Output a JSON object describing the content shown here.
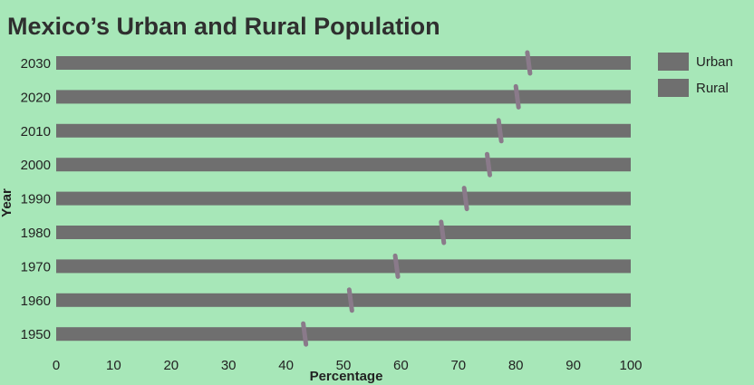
{
  "chart_data": {
    "type": "bar",
    "title": "Mexico’s Urban and Rural Population",
    "xlabel": "Percentage",
    "ylabel": "Year",
    "xlim": [
      0,
      100
    ],
    "xticks": [
      0,
      10,
      20,
      30,
      40,
      50,
      60,
      70,
      80,
      90,
      100
    ],
    "categories": [
      "2030",
      "2020",
      "2010",
      "2000",
      "1990",
      "1980",
      "1970",
      "1960",
      "1950"
    ],
    "series": [
      {
        "name": "Urban",
        "values": [
          82,
          80,
          77,
          75,
          71,
          67,
          59,
          51,
          43
        ]
      },
      {
        "name": "Rural",
        "values": [
          18,
          20,
          23,
          25,
          29,
          33,
          41,
          49,
          57
        ]
      }
    ],
    "stacked": true,
    "legend_position": "top-right",
    "colors": {
      "background": "#a7e7b8",
      "urban": "#6f6f6f",
      "rural": "#6f6f6f",
      "divider": "#8a7a8a",
      "text": "#222222"
    }
  }
}
